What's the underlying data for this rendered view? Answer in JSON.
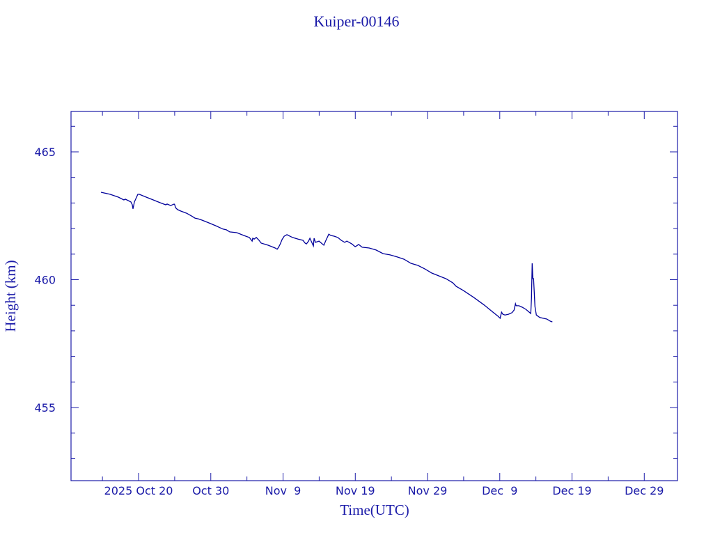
{
  "chart_data": {
    "type": "line",
    "title": "Kuiper-00146",
    "xlabel": "Time(UTC)",
    "ylabel": "Height (km)",
    "x_units": "days since 2025 Oct 20 00:00 UTC",
    "xlim": [
      -9.35,
      74.6
    ],
    "ylim": [
      452.14,
      466.58
    ],
    "x_ticks": [
      {
        "value": 0,
        "label": "2025 Oct 20"
      },
      {
        "value": 10,
        "label": "Oct 30"
      },
      {
        "value": 20,
        "label": "Nov  9"
      },
      {
        "value": 30,
        "label": "Nov 19"
      },
      {
        "value": 40,
        "label": "Nov 29"
      },
      {
        "value": 50,
        "label": "Dec  9"
      },
      {
        "value": 60,
        "label": "Dec 19"
      },
      {
        "value": 70,
        "label": "Dec 29"
      }
    ],
    "x_minor_step": 5,
    "y_ticks": [
      {
        "value": 455,
        "label": "455"
      },
      {
        "value": 460,
        "label": "460"
      },
      {
        "value": 465,
        "label": "465"
      }
    ],
    "y_minor_step": 1,
    "grid": false,
    "colors": {
      "line": "#00009a",
      "text": "#1a1aa8",
      "axes": "#1a1aa8"
    },
    "series": [
      {
        "name": "Height",
        "x": [
          -5.21,
          -3.95,
          -2.8,
          -2.03,
          -1.83,
          -1.06,
          -0.87,
          -0.77,
          -0.58,
          -0.1,
          0.1,
          1.06,
          2.03,
          2.99,
          3.76,
          3.95,
          4.44,
          4.92,
          5.01,
          5.11,
          5.4,
          5.88,
          6.65,
          7.33,
          7.81,
          8.29,
          8.78,
          9.74,
          10.7,
          11.67,
          12.15,
          12.63,
          13.6,
          14.56,
          15.33,
          15.72,
          15.81,
          16.01,
          16.3,
          16.68,
          16.97,
          17.94,
          18.9,
          19.19,
          19.38,
          19.58,
          19.86,
          20.15,
          20.54,
          21.32,
          22.08,
          22.76,
          23.05,
          23.24,
          23.53,
          23.72,
          24.2,
          24.3,
          24.49,
          24.98,
          25.17,
          25.65,
          25.94,
          26.33,
          26.62,
          27.1,
          27.58,
          28.06,
          28.54,
          28.83,
          29.51,
          29.99,
          30.47,
          30.95,
          31.92,
          32.88,
          33.85,
          34.81,
          35.78,
          36.74,
          37.7,
          38.67,
          39.63,
          40.6,
          41.56,
          42.53,
          43.49,
          43.97,
          44.94,
          46.38,
          47.83,
          48.79,
          49.76,
          50.05,
          50.24,
          50.43,
          50.72,
          51.21,
          51.69,
          51.98,
          52.17,
          52.27,
          52.65,
          53.13,
          53.62,
          54.29,
          54.39,
          54.48,
          54.58,
          54.68,
          54.87,
          55.06,
          55.54,
          56.51,
          56.99,
          57.28
        ],
        "y": [
          463.42,
          463.34,
          463.23,
          463.12,
          463.15,
          463.04,
          462.93,
          462.77,
          463.04,
          463.34,
          463.34,
          463.23,
          463.12,
          463.01,
          462.93,
          462.96,
          462.9,
          462.96,
          462.93,
          462.82,
          462.74,
          462.68,
          462.6,
          462.49,
          462.41,
          462.38,
          462.33,
          462.22,
          462.11,
          461.98,
          461.95,
          461.87,
          461.84,
          461.73,
          461.65,
          461.51,
          461.62,
          461.59,
          461.65,
          461.54,
          461.43,
          461.35,
          461.24,
          461.19,
          461.27,
          461.38,
          461.57,
          461.7,
          461.76,
          461.65,
          461.59,
          461.54,
          461.43,
          461.4,
          461.51,
          461.62,
          461.32,
          461.62,
          461.46,
          461.51,
          461.46,
          461.35,
          461.54,
          461.78,
          461.73,
          461.7,
          461.65,
          461.54,
          461.46,
          461.51,
          461.4,
          461.29,
          461.38,
          461.27,
          461.24,
          461.16,
          461.02,
          460.97,
          460.89,
          460.8,
          460.64,
          460.56,
          460.42,
          460.26,
          460.15,
          460.04,
          459.88,
          459.74,
          459.58,
          459.31,
          459.01,
          458.79,
          458.57,
          458.49,
          458.73,
          458.65,
          458.62,
          458.65,
          458.71,
          458.81,
          459.06,
          458.98,
          458.98,
          458.92,
          458.84,
          458.68,
          459.28,
          460.64,
          460.04,
          460.04,
          458.95,
          458.62,
          458.52,
          458.46,
          458.38,
          458.35
        ]
      }
    ]
  }
}
